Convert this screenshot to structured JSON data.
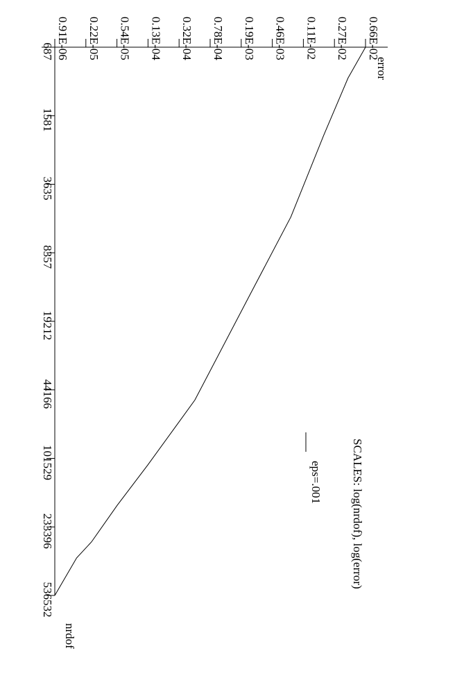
{
  "chart_data": {
    "type": "line",
    "title": "",
    "scales_note": "SCALES: log(nrdof), log(error)",
    "xlabel": "nrdof",
    "ylabel": "error",
    "x_scale": "log",
    "y_scale": "log",
    "x_ticks": [
      "687",
      "1581",
      "3635",
      "8357",
      "19212",
      "44166",
      "101529",
      "233396",
      "536532"
    ],
    "y_ticks": [
      "0.91E-06",
      "0.22E-05",
      "0.54E-05",
      "0.13E-04",
      "0.32E-04",
      "0.78E-04",
      "0.19E-03",
      "0.46E-03",
      "0.11E-02",
      "0.27E-02",
      "0.66E-02"
    ],
    "xlim": [
      687,
      536532
    ],
    "ylim": [
      9.1e-07,
      0.0066
    ],
    "grid": false,
    "legend": {
      "placement": "right",
      "entries": [
        "eps=.001"
      ]
    },
    "series": [
      {
        "name": "eps=.001",
        "points": [
          {
            "x": 687,
            "y": 0.0066
          },
          {
            "x": 1000,
            "y": 0.004
          },
          {
            "x": 2000,
            "y": 0.002
          },
          {
            "x": 5400,
            "y": 0.00078
          },
          {
            "x": 14000,
            "y": 0.00024
          },
          {
            "x": 50000,
            "y": 5e-05
          },
          {
            "x": 110000,
            "y": 1.3e-05
          },
          {
            "x": 180000,
            "y": 5.4e-06
          },
          {
            "x": 280000,
            "y": 2.6e-06
          },
          {
            "x": 340000,
            "y": 1.7e-06
          },
          {
            "x": 536532,
            "y": 9.1e-07
          }
        ]
      }
    ]
  }
}
